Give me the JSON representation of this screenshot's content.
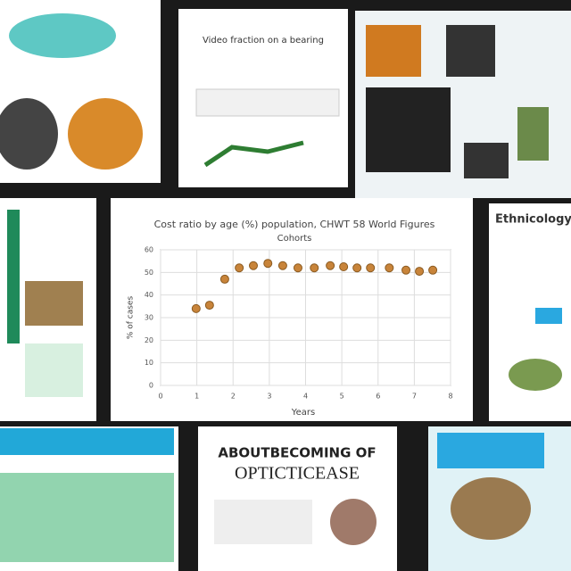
{
  "panels": {
    "top_center": {
      "heading": "Video fraction on a bearing"
    },
    "bottom_center": {
      "heading": "ABOUTBECOMING OF",
      "subheading": "OPTICTICEASE"
    },
    "right": {
      "heading": "Ethnicology"
    }
  },
  "chart_data": {
    "type": "scatter",
    "title": "Cost ratio by age (%) population, CHWT 58 World Figures",
    "subtitle": "Cohorts",
    "x_label": "Years",
    "y_label": "% of cases",
    "color": "#c8843a",
    "grid": true,
    "x": [
      0.98,
      1.35,
      1.77,
      2.17,
      2.56,
      2.96,
      3.37,
      3.79,
      4.24,
      4.68,
      5.05,
      5.42,
      5.79,
      6.31,
      6.77,
      7.14,
      7.51
    ],
    "values": [
      34,
      35.5,
      47,
      52,
      53,
      54,
      53,
      52,
      52,
      53,
      52.5,
      52,
      52,
      52,
      51,
      50.5,
      51
    ],
    "xlim": [
      0,
      8
    ],
    "xticks": [
      0,
      1,
      2,
      3,
      4,
      5,
      6,
      7,
      8
    ],
    "ylim": [
      0,
      60
    ],
    "yticks": [
      0,
      10,
      20,
      30,
      40,
      50,
      60
    ]
  }
}
